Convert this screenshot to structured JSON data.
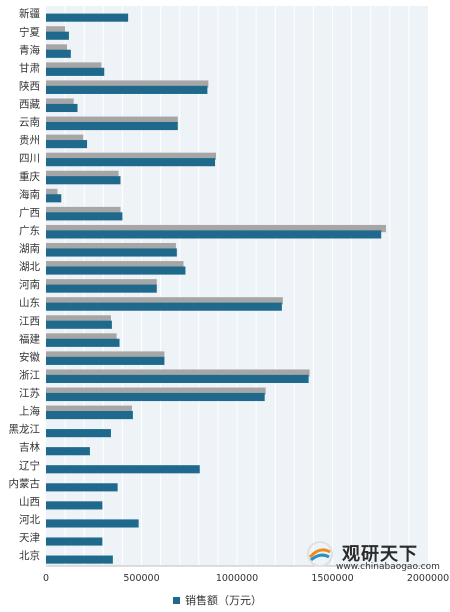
{
  "chart_data": {
    "type": "bar",
    "orientation": "horizontal",
    "categories": [
      "新疆",
      "宁夏",
      "青海",
      "甘肃",
      "陕西",
      "西藏",
      "云南",
      "贵州",
      "四川",
      "重庆",
      "海南",
      "广西",
      "广东",
      "湖南",
      "湖北",
      "河南",
      "山东",
      "江西",
      "福建",
      "安徽",
      "浙江",
      "江苏",
      "上海",
      "黑龙江",
      "吉林",
      "辽宁",
      "内蒙古",
      "山西",
      "河北",
      "天津",
      "北京"
    ],
    "series": [
      {
        "name": "",
        "color": "#a6a6a6",
        "values": [
          0,
          100000,
          110000,
          290000,
          850000,
          145000,
          690000,
          195000,
          890000,
          380000,
          60000,
          390000,
          1780000,
          680000,
          720000,
          580000,
          1240000,
          340000,
          370000,
          620000,
          1380000,
          1150000,
          450000,
          0,
          0,
          0,
          0,
          0,
          0,
          0,
          0
        ]
      },
      {
        "name": "销售额（万元）",
        "color": "#1f6a8c",
        "values": [
          430000,
          120000,
          130000,
          305000,
          845000,
          165000,
          690000,
          215000,
          885000,
          390000,
          80000,
          400000,
          1755000,
          685000,
          730000,
          580000,
          1235000,
          345000,
          385000,
          620000,
          1375000,
          1145000,
          455000,
          340000,
          230000,
          805000,
          375000,
          295000,
          485000,
          295000,
          350000
        ]
      }
    ],
    "xlim": [
      0,
      2000000
    ],
    "xticks": [
      "0",
      "500000",
      "1000000",
      "1500000",
      "2000000"
    ],
    "grid": true,
    "legend_position": "bottom"
  },
  "legend": {
    "label": "销售额（万元）"
  },
  "watermark": {
    "name": "观研天下",
    "url": "www.chinabaogao.com"
  }
}
